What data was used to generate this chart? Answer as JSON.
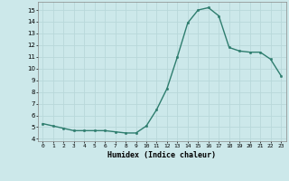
{
  "x": [
    0,
    1,
    2,
    3,
    4,
    5,
    6,
    7,
    8,
    9,
    10,
    11,
    12,
    13,
    14,
    15,
    16,
    17,
    18,
    19,
    20,
    21,
    22,
    23
  ],
  "y": [
    5.3,
    5.1,
    4.9,
    4.7,
    4.7,
    4.7,
    4.7,
    4.6,
    4.5,
    4.5,
    5.1,
    6.5,
    8.3,
    11.0,
    13.9,
    15.0,
    15.2,
    14.5,
    11.8,
    11.5,
    11.4,
    11.4,
    10.8,
    9.4
  ],
  "xlabel": "Humidex (Indice chaleur)",
  "xlim": [
    -0.5,
    23.5
  ],
  "ylim": [
    3.8,
    15.7
  ],
  "yticks": [
    4,
    5,
    6,
    7,
    8,
    9,
    10,
    11,
    12,
    13,
    14,
    15
  ],
  "xticks": [
    0,
    1,
    2,
    3,
    4,
    5,
    6,
    7,
    8,
    9,
    10,
    11,
    12,
    13,
    14,
    15,
    16,
    17,
    18,
    19,
    20,
    21,
    22,
    23
  ],
  "line_color": "#2e7d6e",
  "marker_color": "#2e7d6e",
  "bg_color": "#cce8ea",
  "grid_color": "#b8d8da",
  "marker": "o",
  "markersize": 1.8,
  "linewidth": 1.0
}
